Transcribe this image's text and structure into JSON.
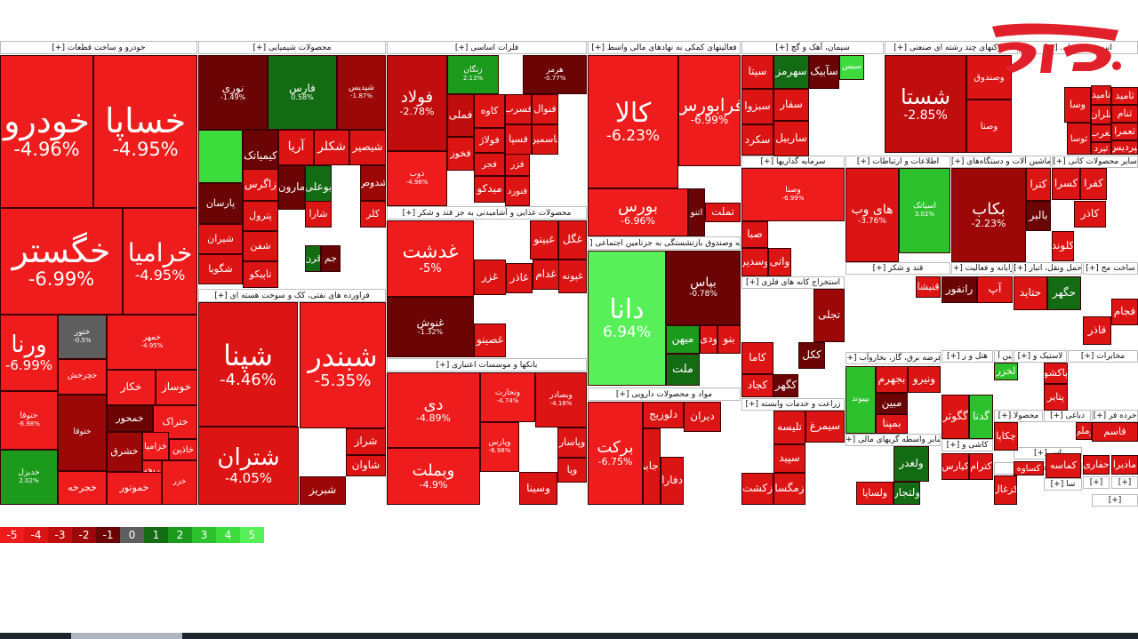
{
  "legend": [
    "-5",
    "-4",
    "-3",
    "-2",
    "-1",
    "0",
    "1",
    "2",
    "3",
    "4",
    "5"
  ],
  "legend_colors": [
    "#ee1c1c",
    "#dd1414",
    "#c00e0e",
    "#9c0808",
    "#6b0404",
    "#5e5e5e",
    "#136c13",
    "#1c9a1c",
    "#2cc12c",
    "#3ddc3d",
    "#58f058"
  ],
  "headers": [
    "خودرو و ساخت قطعات [+]",
    "محصولات شیمیایی [+]",
    "فلزات اساسی [+]",
    "فعالیتهای کمکی به نهادهای مالی واسط [+]",
    "سیمان، آهک و گچ [+]",
    "شرکتهای چند رشته ای صنعتی [+]",
    "انبوه سازی، ا... [+]",
    "فراورده های نفتی، کک و سوخت هسته ای [+]",
    "محصولات غذایی و آشامیدنی به جز قند و شکر [+]",
    "بیمه وصندوق بازنشستگی به جزتامین اجتماعی [+]",
    "بانکها و موسسات اعتباری [+]",
    "مواد و محصولات دارویی [+]",
    "سرمایه گذاریها [+]",
    "اطلاعات و ارتباطات [+]",
    "ماشین آلات و دستگاه‌های [+]",
    "سایر محصولات کانی [+]",
    "قند و شکر [+]",
    "رایانه و فعالیت [+]",
    "حمل ونقل، انبار [+]",
    "ساخت مح [+]",
    "استخراج کانه های فلزی [+]",
    "عرضه برق، گاز، بخاروآب [+]",
    "زراعت و خدمات وابسته [+]",
    "سایر واسطه گریهای مالی [+]",
    "هتل و ر [+]",
    "لاستیک و [+]",
    "مخابرات [+]",
    "ماشین آ [+]",
    "محصولا [+]",
    "دباغی [+]",
    "خرده فر [+]",
    "کاشی و [+]",
    "اس [+]",
    "استخراج [+]",
    "سا [+]",
    "[+]",
    "[+]",
    "[+]"
  ],
  "chart_data": {
    "type": "heatmap",
    "color_scale": {
      "min": -5,
      "max": 5
    },
    "tiles": [
      {
        "symbol": "خودرو",
        "change": -4.96,
        "label": "-4.96%"
      },
      {
        "symbol": "خساپا",
        "change": -4.95,
        "label": "-4.95%"
      },
      {
        "symbol": "خگستر",
        "change": -6.99,
        "label": "-6.99%"
      },
      {
        "symbol": "خراميا",
        "change": -4.95,
        "label": "-4.95%"
      },
      {
        "symbol": "ورنا",
        "change": -6.99,
        "label": "-6.99%"
      },
      {
        "symbol": "ختور",
        "change": -0.5,
        "label": "-0.5%"
      },
      {
        "symbol": "خمهر",
        "change": -4.95,
        "label": "-4.95%"
      },
      {
        "symbol": "ختوقا",
        "change": -6.98,
        "label": "-6.98%"
      },
      {
        "symbol": "خچرخش",
        "change": -5.0,
        "label": ""
      },
      {
        "symbol": "خکار",
        "change": -5.0,
        "label": ""
      },
      {
        "symbol": "خوساز",
        "change": -5.0,
        "label": ""
      },
      {
        "symbol": "خمحور",
        "change": -1.0,
        "label": ""
      },
      {
        "symbol": "ختراک",
        "change": -5.0,
        "label": ""
      },
      {
        "symbol": "خزامیا",
        "change": -5.0,
        "label": ""
      },
      {
        "symbol": "خشرق",
        "change": -2.0,
        "label": ""
      },
      {
        "symbol": "خاذین",
        "change": -5.0,
        "label": ""
      },
      {
        "symbol": "خريخت",
        "change": -5.0,
        "label": ""
      },
      {
        "symbol": "خزر",
        "change": -5.0,
        "label": ""
      },
      {
        "symbol": "خجرخه",
        "change": -5.0,
        "label": ""
      },
      {
        "symbol": "خموتور",
        "change": -5.0,
        "label": ""
      },
      {
        "symbol": "ختوقا",
        "change": -2.0,
        "label": ""
      },
      {
        "symbol": "خدیزل",
        "change": 2.02,
        "label": "2.02%"
      },
      {
        "symbol": "نوری",
        "change": -1.49,
        "label": "-1.49%"
      },
      {
        "symbol": "فارس",
        "change": 0.58,
        "label": "0.58%"
      },
      {
        "symbol": "شپدیس",
        "change": -1.87,
        "label": "-1.87%"
      },
      {
        "symbol": "",
        "change": 4.0,
        "label": ""
      },
      {
        "symbol": "کیمیاتک",
        "change": -1.0,
        "label": ""
      },
      {
        "symbol": "آریا",
        "change": -4.5,
        "label": ""
      },
      {
        "symbol": "شکلر",
        "change": -4.5,
        "label": ""
      },
      {
        "symbol": "شیصیر",
        "change": -4.5,
        "label": ""
      },
      {
        "symbol": "پارسان",
        "change": -1.5,
        "label": ""
      },
      {
        "symbol": "زاگرس",
        "change": -4.5,
        "label": ""
      },
      {
        "symbol": "مارون",
        "change": -1.0,
        "label": ""
      },
      {
        "symbol": "بوعلی",
        "change": 0.5,
        "label": ""
      },
      {
        "symbol": "شدوص",
        "change": -2.0,
        "label": ""
      },
      {
        "symbol": "شیران",
        "change": -4.5,
        "label": ""
      },
      {
        "symbol": "پترول",
        "change": -4.5,
        "label": ""
      },
      {
        "symbol": "شگویا",
        "change": -4.5,
        "label": ""
      },
      {
        "symbol": "شفن",
        "change": -4.5,
        "label": ""
      },
      {
        "symbol": "تاپیکو",
        "change": -4.5,
        "label": ""
      },
      {
        "symbol": "شارا",
        "change": -4.5,
        "label": ""
      },
      {
        "symbol": "کلر",
        "change": -4.5,
        "label": ""
      },
      {
        "symbol": "قرن",
        "change": 0.5,
        "label": ""
      },
      {
        "symbol": "جم",
        "change": -1.0,
        "label": ""
      },
      {
        "symbol": "شپنا",
        "change": -4.46,
        "label": "-4.46%"
      },
      {
        "symbol": "شبندر",
        "change": -5.35,
        "label": "-5.35%"
      },
      {
        "symbol": "شتران",
        "change": -4.05,
        "label": "-4.05%"
      },
      {
        "symbol": "شبریز",
        "change": -2.0,
        "label": ""
      },
      {
        "symbol": "شراز",
        "change": -4.5,
        "label": ""
      },
      {
        "symbol": "شاوان",
        "change": -4.5,
        "label": ""
      },
      {
        "symbol": "فولاد",
        "change": -2.78,
        "label": "-2.78%"
      },
      {
        "symbol": "فملی",
        "change": -3.0,
        "label": ""
      },
      {
        "symbol": "فخوز",
        "change": -4.5,
        "label": ""
      },
      {
        "symbol": "کاوه",
        "change": -4.5,
        "label": ""
      },
      {
        "symbol": "فولاژ",
        "change": -4.5,
        "label": ""
      },
      {
        "symbol": "فجر",
        "change": -4.5,
        "label": ""
      },
      {
        "symbol": "فزر",
        "change": -4.5,
        "label": ""
      },
      {
        "symbol": "فسرب",
        "change": -4.5,
        "label": ""
      },
      {
        "symbol": "فلوله",
        "change": -2.0,
        "label": ""
      },
      {
        "symbol": "فسپا",
        "change": -4.5,
        "label": ""
      },
      {
        "symbol": "فاسمين",
        "change": -4.5,
        "label": ""
      },
      {
        "symbol": "میدکو",
        "change": -4.5,
        "label": ""
      },
      {
        "symbol": "ذوب",
        "change": -4.98,
        "label": "-4.98%"
      },
      {
        "symbol": "فنورد",
        "change": -4.5,
        "label": ""
      },
      {
        "symbol": "فنوال",
        "change": -4.5,
        "label": ""
      },
      {
        "symbol": "زنگان",
        "change": 2.13,
        "label": "2.13%"
      },
      {
        "symbol": "هرمز",
        "change": -0.77,
        "label": "-0.77%"
      },
      {
        "symbol": "غدشت",
        "change": -5.0,
        "label": "-5%"
      },
      {
        "symbol": "غنوش",
        "change": -1.32,
        "label": "-1.32%"
      },
      {
        "symbol": "غبینو",
        "change": -4.5,
        "label": ""
      },
      {
        "symbol": "غگل",
        "change": -4.5,
        "label": ""
      },
      {
        "symbol": "غزر",
        "change": -4.5,
        "label": ""
      },
      {
        "symbol": "غاذر",
        "change": -4.5,
        "label": ""
      },
      {
        "symbol": "غدام",
        "change": -4.5,
        "label": ""
      },
      {
        "symbol": "غپونه",
        "change": -4.5,
        "label": ""
      },
      {
        "symbol": "غصینو",
        "change": -4.5,
        "label": ""
      },
      {
        "symbol": "کالا",
        "change": -6.23,
        "label": "-6.23%"
      },
      {
        "symbol": "فرابورس",
        "change": -6.99,
        "label": "-6.99%"
      },
      {
        "symbol": "بورس",
        "change": -6.96,
        "label": "-6.96%"
      },
      {
        "symbol": "تملت",
        "change": -4.5,
        "label": ""
      },
      {
        "symbol": "اتنو",
        "change": -1.0,
        "label": ""
      },
      {
        "symbol": "دانا",
        "change": 6.94,
        "label": "6.94%"
      },
      {
        "symbol": "بپاس",
        "change": -0.78,
        "label": "-0.78%"
      },
      {
        "symbol": "ملت",
        "change": 0.5,
        "label": ""
      },
      {
        "symbol": "میهن",
        "change": 2.0,
        "label": ""
      },
      {
        "symbol": "ودی",
        "change": -4.5,
        "label": ""
      },
      {
        "symbol": "بنو",
        "change": -4.5,
        "label": ""
      },
      {
        "symbol": "دی",
        "change": -4.89,
        "label": "-4.89%"
      },
      {
        "symbol": "وبملت",
        "change": -4.9,
        "label": "-4.9%"
      },
      {
        "symbol": "وتجارت",
        "change": -4.74,
        "label": "-4.74%"
      },
      {
        "symbol": "وبصادر",
        "change": -4.18,
        "label": "-4.18%"
      },
      {
        "symbol": "وپاسار",
        "change": -4.5,
        "label": ""
      },
      {
        "symbol": "وپارس",
        "change": -6.98,
        "label": "-6.98%"
      },
      {
        "symbol": "وسینا",
        "change": -4.5,
        "label": ""
      },
      {
        "symbol": "وپا",
        "change": -4.5,
        "label": ""
      },
      {
        "symbol": "برکت",
        "change": -6.75,
        "label": "-6.75%"
      },
      {
        "symbol": "دلوزیج",
        "change": -4.5,
        "label": ""
      },
      {
        "symbol": "دیران",
        "change": -4.5,
        "label": ""
      },
      {
        "symbol": "دجابر",
        "change": -4.5,
        "label": ""
      },
      {
        "symbol": "دفارا",
        "change": -4.5,
        "label": ""
      },
      {
        "symbol": "سیتا",
        "change": -4.5,
        "label": ""
      },
      {
        "symbol": "سهرمز",
        "change": 1.0,
        "label": ""
      },
      {
        "symbol": "سآبیک",
        "change": -1.0,
        "label": ""
      },
      {
        "symbol": "سفار",
        "change": -4.5,
        "label": ""
      },
      {
        "symbol": "سبزوا",
        "change": -4.5,
        "label": ""
      },
      {
        "symbol": "ساربیل",
        "change": -4.5,
        "label": ""
      },
      {
        "symbol": "سکرد",
        "change": -4.5,
        "label": ""
      },
      {
        "symbol": "سیس",
        "change": 4.0,
        "label": ""
      },
      {
        "symbol": "شستا",
        "change": -2.85,
        "label": "-2.85%"
      },
      {
        "symbol": "وصندوق",
        "change": -4.5,
        "label": ""
      },
      {
        "symbol": "وصنا",
        "change": -4.5,
        "label": ""
      },
      {
        "symbol": "وسا",
        "change": -4.5,
        "label": ""
      },
      {
        "symbol": "ثامید",
        "change": -4.5,
        "label": ""
      },
      {
        "symbol": "ثنام",
        "change": -4.5,
        "label": ""
      },
      {
        "symbol": "ثعمرا",
        "change": -4.5,
        "label": ""
      },
      {
        "symbol": "ثپردیس",
        "change": -4.5,
        "label": ""
      },
      {
        "symbol": "وصنا",
        "change": -6.99,
        "label": "-6.99%"
      },
      {
        "symbol": "صبا",
        "change": -4.5,
        "label": ""
      },
      {
        "symbol": "وسدیر",
        "change": -4.5,
        "label": ""
      },
      {
        "symbol": "واتی",
        "change": -4.5,
        "label": ""
      },
      {
        "symbol": "های وب",
        "change": -3.76,
        "label": "-3.76%"
      },
      {
        "symbol": "اسیاتک",
        "change": 3.02,
        "label": "3.02%"
      },
      {
        "symbol": "بکاب",
        "change": -2.23,
        "label": "-2.23%"
      },
      {
        "symbol": "بالبر",
        "change": -1.0,
        "label": ""
      },
      {
        "symbol": "کترا",
        "change": -4.5,
        "label": ""
      },
      {
        "symbol": "کسرا",
        "change": -4.5,
        "label": ""
      },
      {
        "symbol": "کفرا",
        "change": -4.5,
        "label": ""
      },
      {
        "symbol": "کاذر",
        "change": -4.5,
        "label": ""
      },
      {
        "symbol": "کلوند",
        "change": -4.5,
        "label": ""
      },
      {
        "symbol": "قنیشا",
        "change": -4.5,
        "label": ""
      },
      {
        "symbol": "رانفور",
        "change": -1.0,
        "label": ""
      },
      {
        "symbol": "آپ",
        "change": -4.5,
        "label": ""
      },
      {
        "symbol": "حتاید",
        "change": -4.5,
        "label": ""
      },
      {
        "symbol": "حگهر",
        "change": 0.5,
        "label": ""
      },
      {
        "symbol": "فجام",
        "change": -4.5,
        "label": ""
      },
      {
        "symbol": "قاذر",
        "change": -4.5,
        "label": ""
      },
      {
        "symbol": "تجلی",
        "change": -2.0,
        "label": ""
      },
      {
        "symbol": "ککل",
        "change": -1.0,
        "label": ""
      },
      {
        "symbol": "کاما",
        "change": -4.5,
        "label": ""
      },
      {
        "symbol": "کجاد",
        "change": -4.5,
        "label": ""
      },
      {
        "symbol": "کگهر",
        "change": -1.0,
        "label": ""
      },
      {
        "symbol": "بجهرم",
        "change": -4.5,
        "label": ""
      },
      {
        "symbol": "ونیرو",
        "change": -4.5,
        "label": ""
      },
      {
        "symbol": "مبین",
        "change": -1.0,
        "label": ""
      },
      {
        "symbol": "بمپنا",
        "change": -4.5,
        "label": ""
      },
      {
        "symbol": "بپیوند",
        "change": 2.5,
        "label": ""
      },
      {
        "symbol": "تلیسه",
        "change": -4.5,
        "label": ""
      },
      {
        "symbol": "سیمرغ",
        "change": -4.5,
        "label": ""
      },
      {
        "symbol": "زکشت",
        "change": -4.5,
        "label": ""
      },
      {
        "symbol": "زمگسا",
        "change": -4.5,
        "label": ""
      },
      {
        "symbol": "سپید",
        "change": -4.5,
        "label": ""
      },
      {
        "symbol": "ولغدر",
        "change": 1.0,
        "label": ""
      },
      {
        "symbol": "ولساپا",
        "change": -4.5,
        "label": ""
      },
      {
        "symbol": "ولتجار",
        "change": 0.5,
        "label": ""
      },
      {
        "symbol": "لخزر",
        "change": 3.0,
        "label": ""
      },
      {
        "symbol": "پتایر",
        "change": -4.5,
        "label": ""
      },
      {
        "symbol": "پاکشو",
        "change": -4.5,
        "label": ""
      },
      {
        "symbol": "گگوثر",
        "change": -4.5,
        "label": ""
      },
      {
        "symbol": "گدنا",
        "change": 3.0,
        "label": ""
      },
      {
        "symbol": "چکاپا",
        "change": -4.5,
        "label": ""
      },
      {
        "symbol": "کیارس",
        "change": -4.5,
        "label": ""
      },
      {
        "symbol": "کترام",
        "change": -4.5,
        "label": ""
      },
      {
        "symbol": "کساوه",
        "change": -4.5,
        "label": ""
      },
      {
        "symbol": "کزغال",
        "change": -4.5,
        "label": ""
      },
      {
        "symbol": "کماسه",
        "change": -4.5,
        "label": ""
      },
      {
        "symbol": "وملي",
        "change": -4.5,
        "label": ""
      },
      {
        "symbol": "قاسم",
        "change": -4.5,
        "label": ""
      },
      {
        "symbol": "حفاری",
        "change": -4.5,
        "label": ""
      },
      {
        "symbol": "مادیرا",
        "change": -4.5,
        "label": ""
      },
      {
        "symbol": "تامید",
        "change": -4.5,
        "label": ""
      },
      {
        "symbol": "تلران",
        "change": -4.5,
        "label": ""
      },
      {
        "symbol": "تغرب",
        "change": -4.5,
        "label": ""
      },
      {
        "symbol": "ثپرد",
        "change": -4.5,
        "label": ""
      },
      {
        "symbol": "ثوسا",
        "change": -4.5,
        "label": ""
      }
    ]
  },
  "logo": {
    "text": "رکنا",
    "color": "#e0202a"
  }
}
